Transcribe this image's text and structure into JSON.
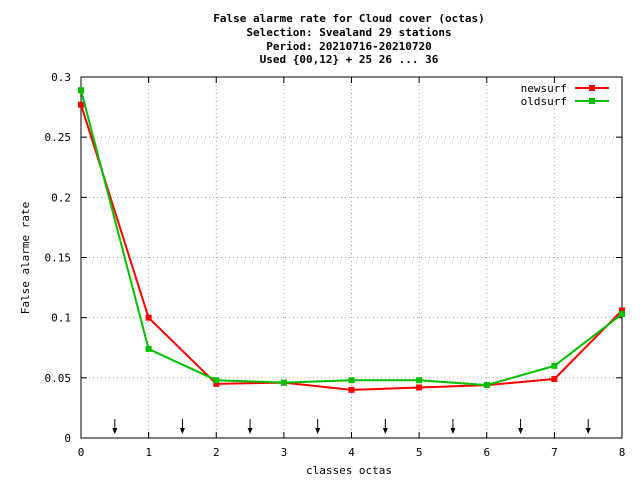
{
  "chart_data": {
    "type": "line",
    "title_lines": [
      "False alarme rate  for Cloud cover (octas)",
      "Selection: Svealand     29 stations",
      "Period: 20210716-20210720",
      "Used {00,12} + 25 26 ... 36"
    ],
    "xlabel": "classes octas",
    "ylabel": "False alarme rate",
    "xlim": [
      0,
      8
    ],
    "ylim": [
      0,
      0.3
    ],
    "x_ticks": [
      "0",
      "1",
      "2",
      "3",
      "4",
      "5",
      "6",
      "7",
      "8"
    ],
    "y_ticks": [
      "0",
      "0.05",
      "0.1",
      "0.15",
      "0.2",
      "0.25",
      "0.3"
    ],
    "grid": true,
    "legend_position": "top-right",
    "arrow_markers_x": [
      0.5,
      1.5,
      2.5,
      3.5,
      4.5,
      5.5,
      6.5,
      7.5
    ],
    "series": [
      {
        "name": "newsurf",
        "color": "#ff0000",
        "x": [
          0,
          1,
          2,
          3,
          4,
          5,
          6,
          7,
          8
        ],
        "y": [
          0.277,
          0.1,
          0.045,
          0.046,
          0.04,
          0.042,
          0.044,
          0.049,
          0.106
        ]
      },
      {
        "name": "oldsurf",
        "color": "#00c000",
        "x": [
          0,
          1,
          2,
          3,
          4,
          5,
          6,
          7,
          8
        ],
        "y": [
          0.289,
          0.074,
          0.048,
          0.046,
          0.048,
          0.048,
          0.044,
          0.06,
          0.103
        ]
      }
    ]
  }
}
